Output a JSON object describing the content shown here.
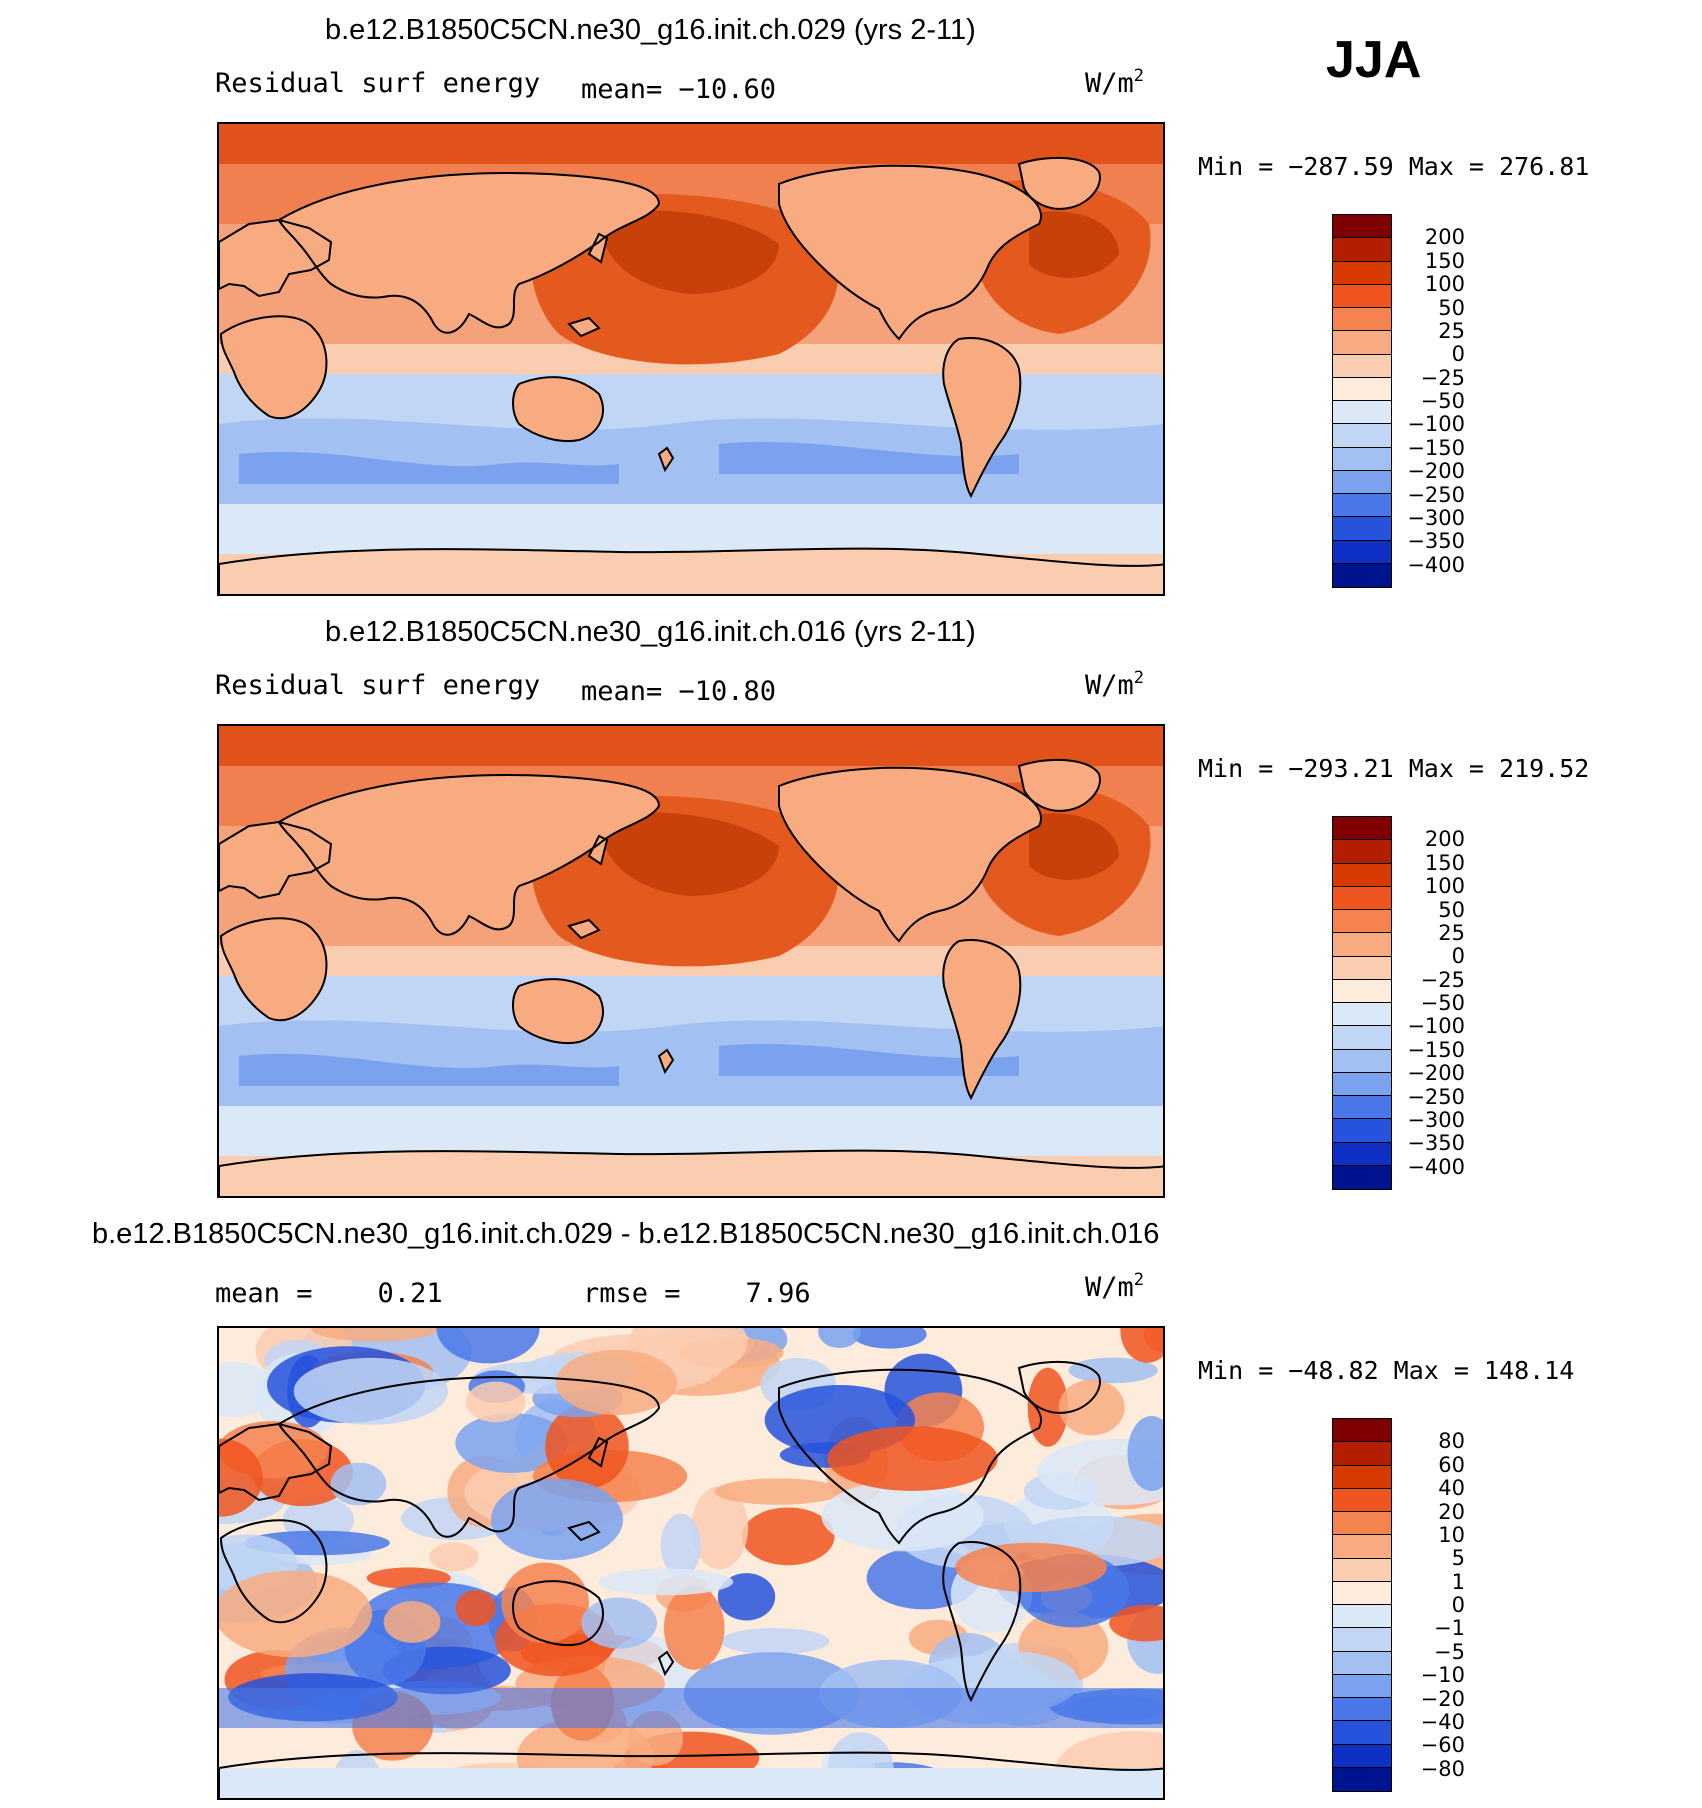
{
  "season": "JJA",
  "panels": [
    {
      "title": "b.e12.B1850C5CN.ne30_g16.init.ch.029 (yrs 2-11)",
      "left_label": "Residual surf energy",
      "center_label": "mean= −10.60",
      "units": "W/m",
      "units_exp": "2",
      "minmax": "Min = −287.59 Max = 276.81",
      "map_kind": "field",
      "colorbar": {
        "labels": [
          "200",
          "150",
          "100",
          "50",
          "25",
          "0",
          "−25",
          "−50",
          "−100",
          "−150",
          "−200",
          "−250",
          "−300",
          "−350",
          "−400"
        ],
        "colors": [
          "#7f0000",
          "#b31e00",
          "#d63a00",
          "#f05520",
          "#f5834f",
          "#f8ab80",
          "#fbcdb0",
          "#fdecdc",
          "#dbe8f8",
          "#c1d6f5",
          "#a3c0f2",
          "#7aa2ef",
          "#4a78e8",
          "#2652dc",
          "#0f30c5",
          "#00138e"
        ]
      }
    },
    {
      "title": "b.e12.B1850C5CN.ne30_g16.init.ch.016 (yrs 2-11)",
      "left_label": "Residual surf energy",
      "center_label": "mean= −10.80",
      "units": "W/m",
      "units_exp": "2",
      "minmax": "Min = −293.21 Max = 219.52",
      "map_kind": "field",
      "colorbar": {
        "labels": [
          "200",
          "150",
          "100",
          "50",
          "25",
          "0",
          "−25",
          "−50",
          "−100",
          "−150",
          "−200",
          "−250",
          "−300",
          "−350",
          "−400"
        ],
        "colors": [
          "#7f0000",
          "#b31e00",
          "#d63a00",
          "#f05520",
          "#f5834f",
          "#f8ab80",
          "#fbcdb0",
          "#fdecdc",
          "#dbe8f8",
          "#c1d6f5",
          "#a3c0f2",
          "#7aa2ef",
          "#4a78e8",
          "#2652dc",
          "#0f30c5",
          "#00138e"
        ]
      }
    },
    {
      "title": "b.e12.B1850C5CN.ne30_g16.init.ch.029 - b.e12.B1850C5CN.ne30_g16.init.ch.016",
      "left_label": "mean =    0.21",
      "center_label": "rmse =    7.96",
      "units": "W/m",
      "units_exp": "2",
      "minmax": "Min = −48.82 Max = 148.14",
      "map_kind": "diff",
      "colorbar": {
        "labels": [
          "80",
          "60",
          "40",
          "20",
          "10",
          "5",
          "1",
          "0",
          "−1",
          "−5",
          "−10",
          "−20",
          "−40",
          "−60",
          "−80"
        ],
        "colors": [
          "#7f0000",
          "#b31e00",
          "#d63a00",
          "#f05520",
          "#f5834f",
          "#f8ab80",
          "#fbcdb0",
          "#fdecdc",
          "#dbe8f8",
          "#c1d6f5",
          "#a3c0f2",
          "#7aa2ef",
          "#4a78e8",
          "#2652dc",
          "#0f30c5",
          "#00138e"
        ]
      }
    }
  ]
}
